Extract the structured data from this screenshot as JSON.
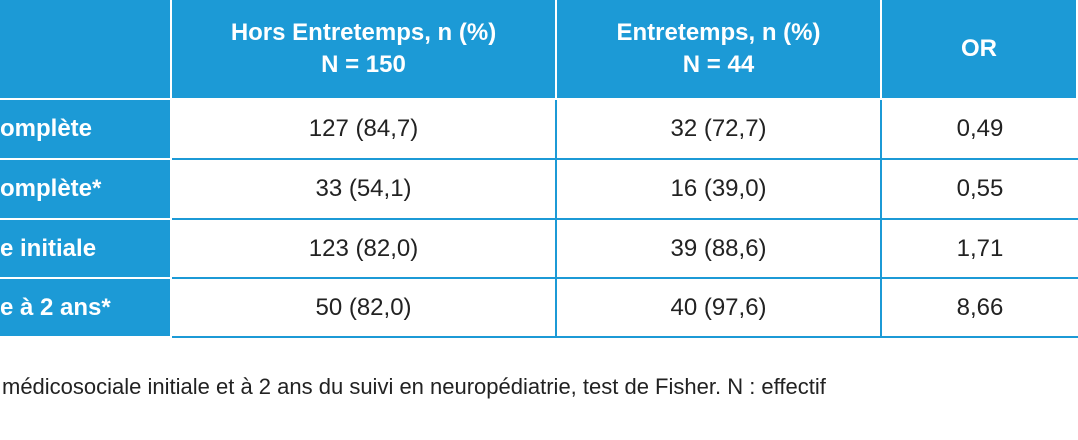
{
  "table": {
    "columns": [
      {
        "title": "Hors Entretemps, n (%)",
        "n": "N = 150"
      },
      {
        "title": "Entretemps, n (%)",
        "n": "N = 44"
      },
      {
        "title": "OR"
      }
    ],
    "rows": [
      [
        "omplète",
        "127 (84,7)",
        "32 (72,7)",
        "0,49"
      ],
      [
        "omplète*",
        "33 (54,1)",
        "16 (39,0)",
        "0,55"
      ],
      [
        "e initiale",
        "123 (82,0)",
        "39 (88,6)",
        "1,71"
      ],
      [
        "e à 2 ans*",
        "50 (82,0)",
        "40 (97,6)",
        "8,66"
      ]
    ]
  },
  "caption": "médicosociale initiale et à 2 ans du suivi en neuropédiatrie, test de Fisher. N : effectif"
}
